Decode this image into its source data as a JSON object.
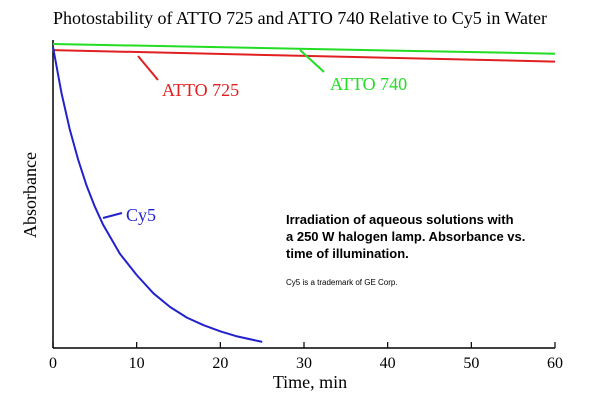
{
  "chart_data": {
    "type": "line",
    "title": "Photostability of ATTO 725 and ATTO 740 Relative to Cy5 in Water",
    "xlabel": "Time, min",
    "ylabel": "Absorbance",
    "xlim": [
      0,
      60
    ],
    "ylim": [
      0,
      1
    ],
    "x_ticks": [
      0,
      10,
      20,
      30,
      40,
      50,
      60
    ],
    "y_ticks_shown": false,
    "grid": false,
    "legend": "inline labels",
    "series": [
      {
        "name": "ATTO 740",
        "color": "#22dd22",
        "x": [
          0,
          60
        ],
        "y": [
          1.0,
          0.968
        ]
      },
      {
        "name": "ATTO 725",
        "color": "#e02020",
        "x": [
          0,
          60
        ],
        "y": [
          0.98,
          0.942
        ]
      },
      {
        "name": "Cy5",
        "color": "#2222cc",
        "x": [
          0,
          1,
          2,
          3,
          4,
          5,
          6,
          8,
          10,
          12,
          14,
          16,
          18,
          20,
          22,
          25
        ],
        "y": [
          0.99,
          0.84,
          0.72,
          0.62,
          0.535,
          0.465,
          0.405,
          0.31,
          0.24,
          0.18,
          0.135,
          0.1,
          0.075,
          0.055,
          0.038,
          0.02
        ]
      }
    ],
    "annotations": [
      "Irradiation of aqueous solutions with",
      "a 250 W halogen lamp. Absorbance vs.",
      "time of illumination.",
      "Cy5 is a trademark of GE Corp."
    ]
  }
}
